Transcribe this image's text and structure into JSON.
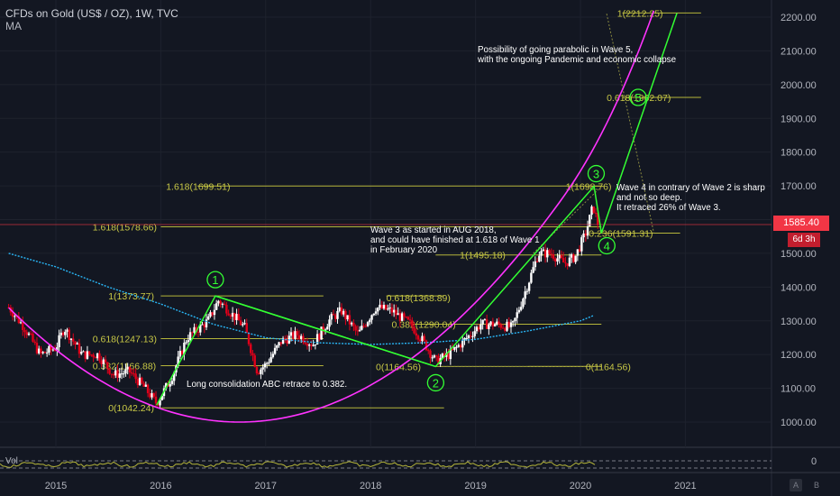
{
  "header": {
    "title": "CFDs on Gold (US$ / OZ), 1W, TVC",
    "indicator": "MA"
  },
  "price_tag": "1585.40",
  "time_tag": "6d 3h",
  "volume_label": "Vol",
  "volume_axis_value": "0",
  "axis_buttons": {
    "auto": "A",
    "log": "B"
  },
  "colors": {
    "background": "#131722",
    "up_candle": "#ffffff",
    "down_candle": "#e0001a",
    "wave_line": "#33ff33",
    "parabola": "#ff33ff",
    "ma_line": "#29b6f6",
    "fib_level": "#b5b53a",
    "fib_text": "#c8c846",
    "price_tag": "#f23645"
  },
  "annotations": {
    "parabolic_note": [
      "Possibility of going parabolic in Wave 5,",
      "with the ongoing Pandemic and economic collapse"
    ],
    "wave4_note": [
      "Wave 4 in contrary of Wave 2 is sharp",
      "and not so deep.",
      "It retraced 26% of Wave 3."
    ],
    "wave3_note": [
      "Wave 3 as started in AUG 2018,",
      "and could have finished at 1.618 of Wave 1",
      "in February 2020"
    ],
    "abc_note": [
      "Long consolidation ABC retrace to 0.382."
    ]
  },
  "fib_labels": {
    "w5_1": "1(2212.25)",
    "w5_0618": "0.618(1962.07)",
    "w3_1618": "1.618(1699.51)",
    "w3_1": "1(1698.76)",
    "w4_0236": "0.236(1591.31)",
    "w3_base": "1(1495.18)",
    "w1_1618": "1.618(1578.66)",
    "w1_1": "1(1373.77)",
    "w1_0618": "0.618(1247.13)",
    "w1_0382": "0.382(1166.88)",
    "w1_0": "0(1042.24)",
    "w2_0618": "0.618(1368.89)",
    "w2_0382": "0.382(1290.04)",
    "w2_0": "0(1164.56)",
    "w2_0b": "0(1164.56)"
  },
  "wave_labels": [
    "1",
    "2",
    "3",
    "4",
    "5"
  ],
  "chart_data": {
    "type": "candlestick",
    "title": "CFDs on Gold (US$ / OZ), 1W, TVC",
    "x_ticks": [
      2015,
      2016,
      2017,
      2018,
      2019,
      2020,
      2021
    ],
    "y_ticks": [
      1000,
      1100,
      1200,
      1300,
      1400,
      1500,
      1600,
      1700,
      1800,
      1900,
      2000,
      2100,
      2200
    ],
    "y_tick_labels": [
      "1000.00",
      "1100.00",
      "1200.00",
      "1300.00",
      "1400.00",
      "1500.00",
      "1600.00",
      "1700.00",
      "1800.00",
      "1900.00",
      "2000.00",
      "2100.00",
      "2200.00"
    ],
    "ylim": [
      920,
      2260
    ],
    "xlim": [
      2014.55,
      2021.75
    ],
    "last_price": 1585.4,
    "grid": true,
    "price_path": [
      [
        2014.55,
        1340
      ],
      [
        2014.7,
        1280
      ],
      [
        2014.85,
        1200
      ],
      [
        2015.0,
        1220
      ],
      [
        2015.08,
        1280
      ],
      [
        2015.25,
        1200
      ],
      [
        2015.4,
        1200
      ],
      [
        2015.55,
        1140
      ],
      [
        2015.7,
        1150
      ],
      [
        2015.85,
        1100
      ],
      [
        2015.96,
        1055
      ],
      [
        2016.1,
        1130
      ],
      [
        2016.25,
        1250
      ],
      [
        2016.45,
        1300
      ],
      [
        2016.55,
        1360
      ],
      [
        2016.65,
        1330
      ],
      [
        2016.8,
        1280
      ],
      [
        2016.92,
        1150
      ],
      [
        2017.0,
        1170
      ],
      [
        2017.15,
        1240
      ],
      [
        2017.3,
        1260
      ],
      [
        2017.45,
        1230
      ],
      [
        2017.6,
        1300
      ],
      [
        2017.72,
        1330
      ],
      [
        2017.88,
        1260
      ],
      [
        2018.05,
        1340
      ],
      [
        2018.2,
        1330
      ],
      [
        2018.38,
        1290
      ],
      [
        2018.5,
        1240
      ],
      [
        2018.62,
        1180
      ],
      [
        2018.75,
        1200
      ],
      [
        2018.92,
        1250
      ],
      [
        2019.05,
        1290
      ],
      [
        2019.2,
        1290
      ],
      [
        2019.35,
        1280
      ],
      [
        2019.5,
        1410
      ],
      [
        2019.6,
        1500
      ],
      [
        2019.72,
        1500
      ],
      [
        2019.85,
        1470
      ],
      [
        2019.95,
        1490
      ],
      [
        2020.05,
        1560
      ],
      [
        2020.12,
        1640
      ],
      [
        2020.17,
        1585
      ]
    ],
    "waves": [
      {
        "label": "1",
        "x": 2016.52,
        "y": 1373.77
      },
      {
        "label": "2",
        "x": 2018.62,
        "y": 1164.56
      },
      {
        "label": "3",
        "x": 2020.15,
        "y": 1698.76
      },
      {
        "label": "4",
        "x": 2020.2,
        "y": 1560
      },
      {
        "label": "5",
        "x": 2020.55,
        "y": 1962.07
      }
    ],
    "moving_average": [
      [
        2014.55,
        1500
      ],
      [
        2015.0,
        1460
      ],
      [
        2015.5,
        1400
      ],
      [
        2016.0,
        1350
      ],
      [
        2016.5,
        1290
      ],
      [
        2017.0,
        1250
      ],
      [
        2017.5,
        1235
      ],
      [
        2018.0,
        1230
      ],
      [
        2018.5,
        1235
      ],
      [
        2019.0,
        1245
      ],
      [
        2019.5,
        1270
      ],
      [
        2020.0,
        1300
      ],
      [
        2020.12,
        1315
      ]
    ]
  }
}
